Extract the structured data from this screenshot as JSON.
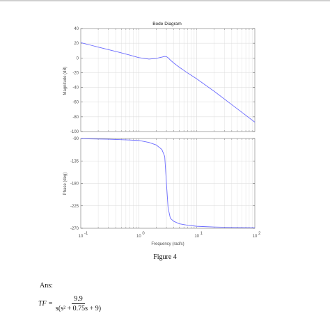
{
  "chart_data": [
    {
      "type": "line",
      "title": "Bode Diagram",
      "ylabel": "Magnitude (dB)",
      "xlabel": "",
      "xscale": "log",
      "xlim": [
        0.1,
        100
      ],
      "ylim": [
        -100,
        40
      ],
      "yticks": [
        40,
        20,
        0,
        -20,
        -40,
        -60,
        -80,
        -100
      ],
      "grid": true,
      "series": [
        {
          "x": [
            0.1,
            0.15,
            0.2,
            0.3,
            0.5,
            0.7,
            1,
            1.5,
            2,
            2.5,
            2.8,
            3,
            3.2,
            3.5,
            4,
            5,
            7,
            10,
            20,
            50,
            100
          ],
          "values": [
            20.8,
            17.3,
            14.8,
            11.3,
            6.9,
            3.9,
            0.5,
            -1.6,
            -0.6,
            1.2,
            2.1,
            1.8,
            0.3,
            -2.8,
            -6.8,
            -12.6,
            -20.6,
            -28.5,
            -45.4,
            -69.2,
            -87.2
          ]
        }
      ],
      "colors": {
        "line": "#6a6aff",
        "grid": "#d9d9d9"
      }
    },
    {
      "type": "line",
      "ylabel": "Phase (deg)",
      "xlabel": "Frequency  (rad/s)",
      "xscale": "log",
      "xlim": [
        0.1,
        100
      ],
      "ylim": [
        -270,
        -90
      ],
      "yticks": [
        -90,
        -135,
        -180,
        -225,
        -270
      ],
      "xticks": [
        0.1,
        1,
        10,
        100
      ],
      "xtick_labels": [
        {
          "base": "10",
          "exp": "-1"
        },
        {
          "base": "10",
          "exp": "0"
        },
        {
          "base": "10",
          "exp": "1"
        },
        {
          "base": "10",
          "exp": "2"
        }
      ],
      "grid": true,
      "series": [
        {
          "x": [
            0.1,
            0.3,
            0.7,
            1,
            1.5,
            2,
            2.5,
            2.8,
            3,
            3.2,
            3.5,
            4,
            5,
            7,
            10,
            20,
            50,
            100
          ],
          "values": [
            -90.5,
            -91.5,
            -93,
            -94,
            -98,
            -103,
            -112,
            -126,
            -180,
            -229,
            -250,
            -256,
            -261,
            -264,
            -266,
            -267.5,
            -268.5,
            -269
          ]
        }
      ],
      "colors": {
        "line": "#6a6aff",
        "grid": "#d9d9d9"
      }
    }
  ],
  "figure_caption": "Figure 4",
  "answer": {
    "label": "Ans:",
    "lhs": "TF =",
    "numerator": "9.9",
    "denominator": "s(s² + 0.75s + 9)"
  }
}
